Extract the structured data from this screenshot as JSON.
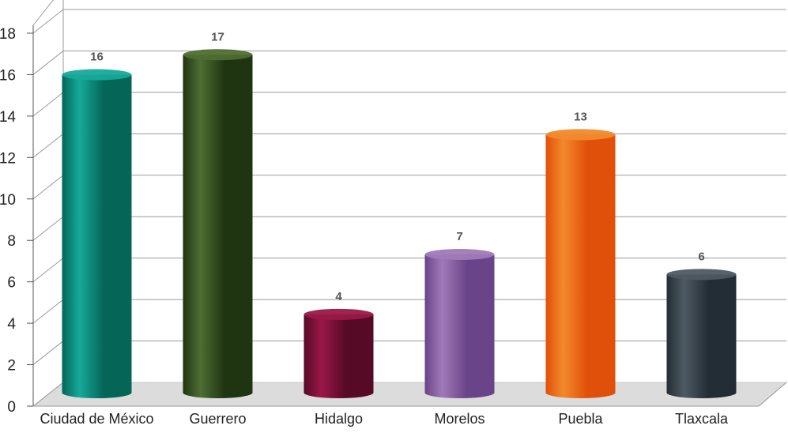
{
  "chart_data": {
    "type": "bar",
    "title": "",
    "xlabel": "",
    "ylabel": "",
    "categories": [
      "Ciudad de México",
      "Guerrero",
      "Hidalgo",
      "Morelos",
      "Puebla",
      "Tlaxcala"
    ],
    "values": [
      16,
      17,
      4,
      7,
      13,
      6
    ],
    "value_labels": [
      "16",
      "17",
      "4",
      "7",
      "13",
      "6"
    ],
    "ylim": [
      0,
      18
    ],
    "yticks": [
      "0",
      "2",
      "4",
      "6",
      "8",
      "10",
      "12",
      "14",
      "16",
      "18"
    ],
    "grid": true,
    "legend": "none",
    "style": "3d-cylinder",
    "colors": [
      {
        "light": "#16a99a",
        "dark": "#056658"
      },
      {
        "light": "#4e6e33",
        "dark": "#1f3512"
      },
      {
        "light": "#9a1848",
        "dark": "#560a26"
      },
      {
        "light": "#a07ab8",
        "dark": "#6a4488"
      },
      {
        "light": "#f2892c",
        "dark": "#e0500a"
      },
      {
        "light": "#4e5a63",
        "dark": "#232d35"
      }
    ]
  }
}
